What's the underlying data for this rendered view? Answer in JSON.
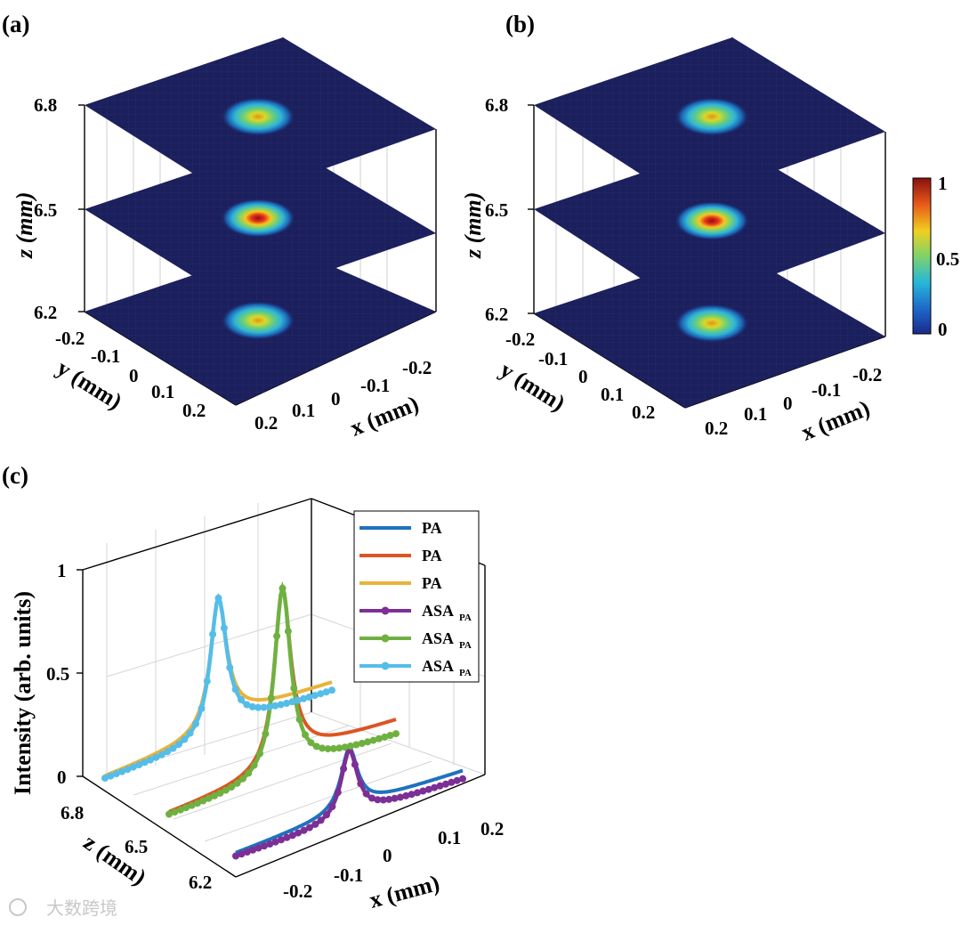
{
  "panel_labels": [
    "(a)",
    "(b)",
    "(c)"
  ],
  "watermark": "大数跨境",
  "colors": {
    "plane": "#1b1f5c",
    "grid": "#2a2f78",
    "box": "#000000",
    "guide": "#c8c8c8",
    "PA_blue": "#1f72bd",
    "PA_orange": "#dd5522",
    "PA_yellow": "#e9b33a",
    "ASA_purple": "#7d2f96",
    "ASA_green": "#6fb141",
    "ASA_cyan": "#55bde8"
  },
  "chart_data": [
    {
      "panel": "(a)",
      "type": "heatmap",
      "title": "",
      "z_label": "z (mm)",
      "y_label": "y (mm)",
      "x_label": "x (mm)",
      "z_ticks": [
        "6.8",
        "6.5",
        "6.2"
      ],
      "y_ticks": [
        "-0.2",
        "-0.1",
        "0",
        "0.1",
        "0.2"
      ],
      "x_ticks": [
        "-0.2",
        "-0.1",
        "0",
        "0.1",
        "0.2"
      ],
      "slices": [
        {
          "z": 6.8,
          "peak": 0.75,
          "center": [
            0,
            0
          ]
        },
        {
          "z": 6.5,
          "peak": 1.0,
          "center": [
            0,
            0
          ]
        },
        {
          "z": 6.2,
          "peak": 0.75,
          "center": [
            0,
            0
          ]
        }
      ]
    },
    {
      "panel": "(b)",
      "type": "heatmap",
      "title": "",
      "z_label": "z (mm)",
      "y_label": "y (mm)",
      "x_label": "x (mm)",
      "z_ticks": [
        "6.8",
        "6.5",
        "6.2"
      ],
      "y_ticks": [
        "-0.2",
        "-0.1",
        "0",
        "0.1",
        "0.2"
      ],
      "x_ticks": [
        "-0.2",
        "-0.1",
        "0",
        "0.1",
        "0.2"
      ],
      "colorbar": {
        "ticks": [
          "1",
          "0.5",
          "0"
        ],
        "range": [
          0,
          1
        ]
      },
      "slices": [
        {
          "z": 6.8,
          "peak": 0.75,
          "center": [
            0,
            0
          ]
        },
        {
          "z": 6.5,
          "peak": 1.0,
          "center": [
            0,
            0
          ]
        },
        {
          "z": 6.2,
          "peak": 0.75,
          "center": [
            0,
            0
          ]
        }
      ]
    },
    {
      "panel": "(c)",
      "type": "line",
      "title": "",
      "ylabel": "Intensity (arb. units)",
      "xlabel": "x (mm)",
      "zlabel": "z (mm)",
      "y_ticks": [
        "1",
        "0.5",
        "0"
      ],
      "x_ticks": [
        "-0.2",
        "-0.1",
        "0",
        "0.1",
        "0.2"
      ],
      "z_ticks": [
        "6.8",
        "6.5",
        "6.2"
      ],
      "ylim": [
        0,
        1
      ],
      "xlim": [
        -0.25,
        0.25
      ],
      "legend": [
        {
          "label": "PA",
          "sub": "",
          "color": "#1f72bd",
          "marker": false
        },
        {
          "label": "PA",
          "sub": "",
          "color": "#dd5522",
          "marker": false
        },
        {
          "label": "PA",
          "sub": "",
          "color": "#e9b33a",
          "marker": false
        },
        {
          "label": "ASA",
          "sub": "PA",
          "color": "#7d2f96",
          "marker": true
        },
        {
          "label": "ASA",
          "sub": "PA",
          "color": "#6fb141",
          "marker": true
        },
        {
          "label": "ASA",
          "sub": "PA",
          "color": "#55bde8",
          "marker": true
        }
      ],
      "series": [
        {
          "z": 6.2,
          "method": "PA",
          "color": "#1f72bd",
          "peak": 0.35,
          "tail_left": 0.05,
          "tail_right": 0.06
        },
        {
          "z": 6.5,
          "method": "PA",
          "color": "#dd5522",
          "peak": 0.93,
          "tail_left": 0.05,
          "tail_right": 0.11
        },
        {
          "z": 6.8,
          "method": "PA",
          "color": "#e9b33a",
          "peak": 0.71,
          "tail_left": 0.06,
          "tail_right": 0.12
        },
        {
          "z": 6.2,
          "method": "ASA_PA",
          "color": "#7d2f96",
          "peak": 0.34,
          "tail_left": 0.01,
          "tail_right": 0.02
        },
        {
          "z": 6.5,
          "method": "ASA_PA",
          "color": "#6fb141",
          "peak": 0.93,
          "tail_left": 0.02,
          "tail_right": 0.04
        },
        {
          "z": 6.8,
          "method": "ASA_PA",
          "color": "#55bde8",
          "peak": 0.71,
          "tail_left": 0.03,
          "tail_right": 0.08
        }
      ]
    }
  ]
}
